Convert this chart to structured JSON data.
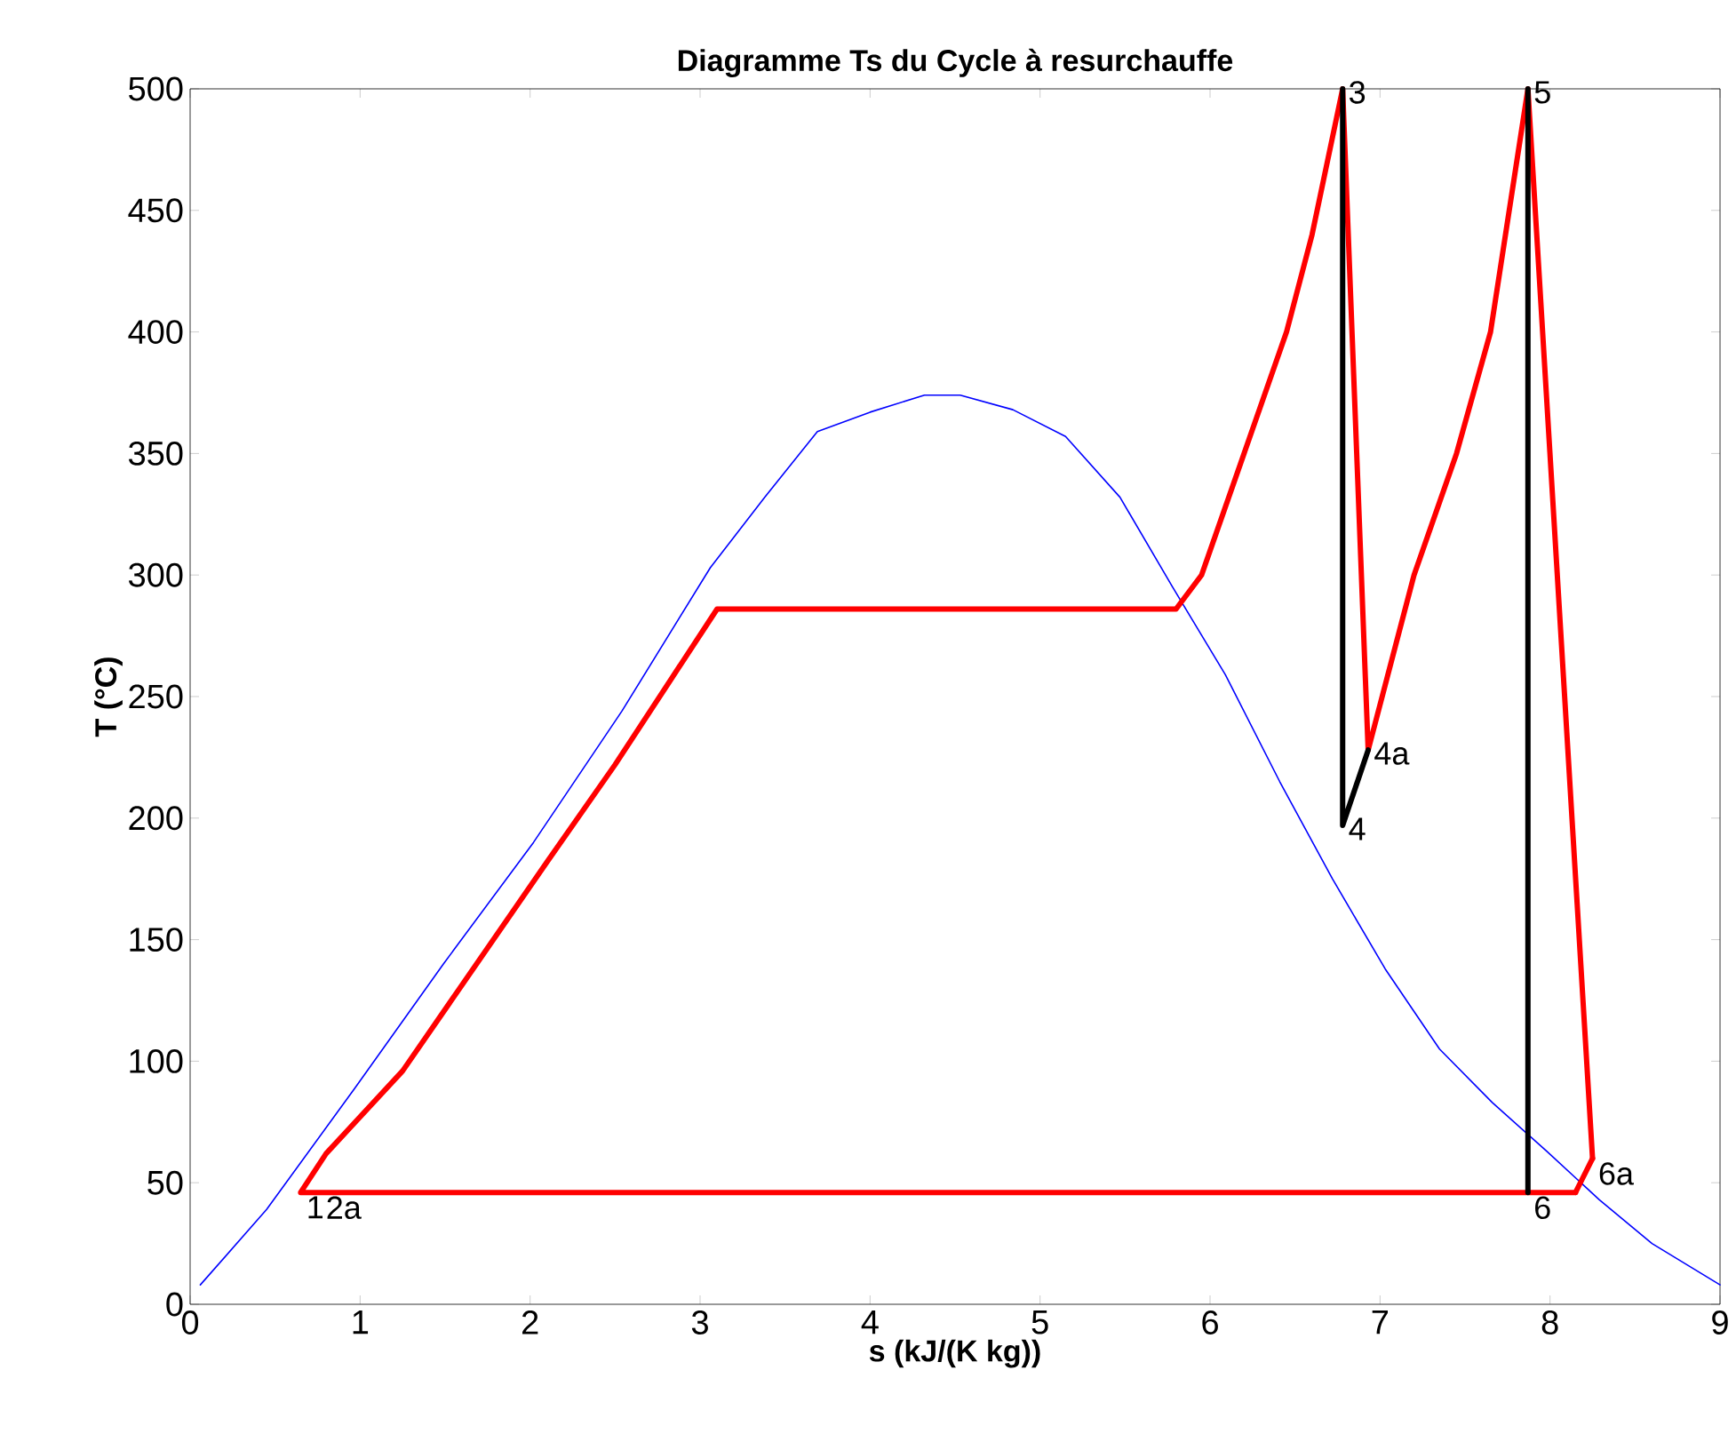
{
  "chart_data": {
    "type": "line",
    "title": "Diagramme Ts du Cycle à resurchauffe",
    "xlabel": "s (kJ/(K kg))",
    "ylabel": "T (°C)",
    "xlim": [
      0,
      9
    ],
    "ylim": [
      0,
      500
    ],
    "xticks": [
      0,
      1,
      2,
      3,
      4,
      5,
      6,
      7,
      8,
      9
    ],
    "yticks": [
      0,
      50,
      100,
      150,
      200,
      250,
      300,
      350,
      400,
      450,
      500
    ],
    "grid": false,
    "marker": "none",
    "line_style": "solid",
    "series": [
      {
        "color": "#0000ff",
        "x": [
          0.06,
          0.45,
          0.97,
          1.49,
          2.02,
          2.54,
          3.06,
          3.38,
          3.69,
          4.0,
          4.32,
          4.53,
          4.84,
          5.15,
          5.47,
          5.78,
          6.09,
          6.41,
          6.72,
          7.03,
          7.35,
          7.66,
          7.98,
          8.29,
          8.6,
          9.0
        ],
        "values": [
          8,
          39,
          89,
          140,
          190,
          244,
          303,
          332,
          359,
          367,
          374,
          374,
          368,
          357,
          332,
          295,
          259,
          215,
          175,
          138,
          105,
          83,
          63,
          43,
          25,
          8
        ]
      },
      {
        "color": "#ff0000",
        "x": [
          8.15,
          0.65,
          0.8,
          1.25,
          2.1,
          2.5,
          3.1,
          5.8,
          5.95,
          6.2,
          6.45,
          6.6,
          6.78,
          6.93,
          7.2,
          7.45,
          7.65,
          7.87,
          8.25
        ],
        "values": [
          46,
          46,
          62,
          96,
          182,
          222,
          286,
          286,
          300,
          350,
          400,
          440,
          500,
          228,
          300,
          350,
          400,
          500,
          60
        ]
      },
      {
        "color": "#000000",
        "x": [
          6.78,
          6.78,
          6.93
        ],
        "values": [
          500,
          197,
          228
        ]
      },
      {
        "color": "#000000",
        "x": [
          7.87,
          7.87
        ],
        "values": [
          500,
          46
        ]
      },
      {
        "color": "#ff0000",
        "x": [
          8.25,
          8.15
        ],
        "values": [
          60,
          46
        ]
      }
    ],
    "annotations": [
      {
        "text": "1",
        "x": 0.65,
        "y": 46
      },
      {
        "text": "2a",
        "x": 0.65,
        "y": 46
      },
      {
        "text": "3",
        "x": 6.78,
        "y": 500
      },
      {
        "text": "4",
        "x": 6.78,
        "y": 197
      },
      {
        "text": "4a",
        "x": 6.93,
        "y": 228
      },
      {
        "text": "5",
        "x": 7.87,
        "y": 500
      },
      {
        "text": "6",
        "x": 7.87,
        "y": 46
      },
      {
        "text": "6a",
        "x": 8.25,
        "y": 60
      }
    ]
  }
}
